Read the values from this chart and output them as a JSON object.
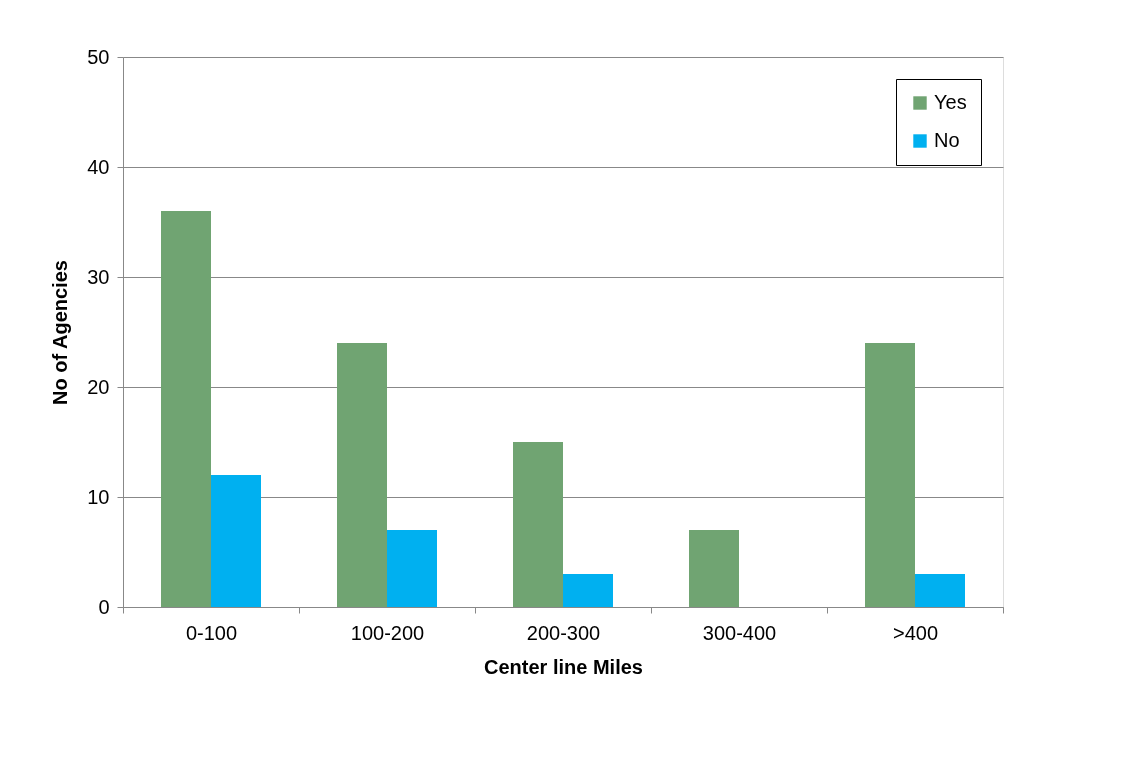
{
  "chart_data": {
    "type": "bar",
    "xlabel": "Center line Miles",
    "ylabel": "No of Agencies",
    "categories": [
      "0-100",
      "100-200",
      "200-300",
      "300-400",
      ">400"
    ],
    "series": [
      {
        "name": "Yes",
        "color": "#70a472",
        "values": [
          36,
          24,
          15,
          7,
          24
        ]
      },
      {
        "name": "No",
        "color": "#00b0f0",
        "values": [
          12,
          7,
          3,
          0,
          3
        ]
      }
    ],
    "ylim": [
      0,
      50
    ],
    "yticks": [
      0,
      10,
      20,
      30,
      40,
      50
    ],
    "grid": "y",
    "legend": "top right"
  }
}
